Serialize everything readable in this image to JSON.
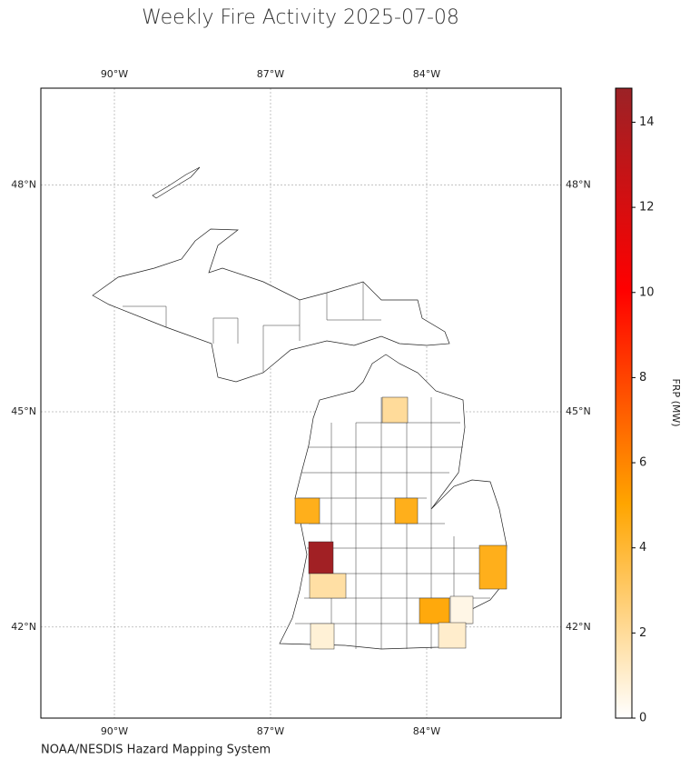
{
  "title": "Weekly Fire Activity 2025-07-08",
  "map": {
    "lon_ticks": [
      {
        "value": -90,
        "label": "90°W"
      },
      {
        "value": -87,
        "label": "87°W"
      },
      {
        "value": -84,
        "label": "84°W"
      }
    ],
    "lat_ticks": [
      {
        "value": 48,
        "label": "48°N"
      },
      {
        "value": 45,
        "label": "45°N"
      },
      {
        "value": 42,
        "label": "42°N"
      }
    ],
    "fire_frp": [
      2,
      4.5,
      4.5,
      14.5,
      1.8,
      4.5,
      4.8,
      0.5,
      1,
      0.8
    ]
  },
  "colorbar": {
    "label": "FRP (MW)",
    "lim": [
      0,
      14.8
    ],
    "ticks": [
      0,
      2,
      4,
      6,
      8,
      10,
      12,
      14
    ]
  },
  "source": "NOAA/NESDIS Hazard Mapping System"
}
